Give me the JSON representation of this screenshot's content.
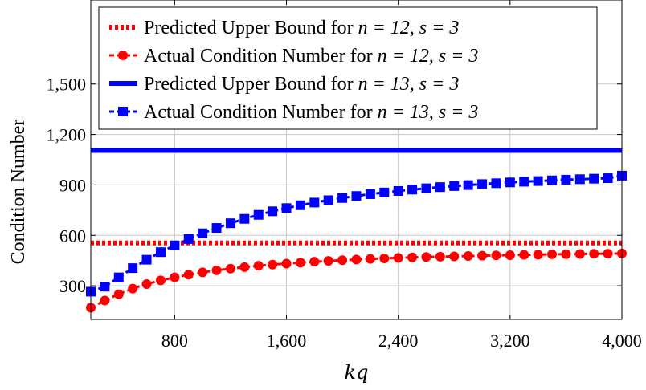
{
  "chart_data": {
    "type": "line",
    "xlabel": "kq",
    "ylabel": "Condition Number",
    "xlim": [
      200,
      4000
    ],
    "ylim": [
      100,
      2000
    ],
    "xticks": [
      800,
      1600,
      2400,
      3200,
      4000
    ],
    "xtick_labels": [
      "800",
      "1,600",
      "2,400",
      "3,200",
      "4,000"
    ],
    "yticks": [
      300,
      600,
      900,
      1200,
      1500
    ],
    "ytick_labels": [
      "300",
      "600",
      "900",
      "1,200",
      "1,500"
    ],
    "grid": true,
    "legend_position": "top",
    "x": [
      200,
      300,
      400,
      500,
      600,
      700,
      800,
      900,
      1000,
      1100,
      1200,
      1300,
      1400,
      1500,
      1600,
      1700,
      1800,
      1900,
      2000,
      2100,
      2200,
      2300,
      2400,
      2500,
      2600,
      2700,
      2800,
      2900,
      3000,
      3100,
      3200,
      3300,
      3400,
      3500,
      3600,
      3700,
      3800,
      3900,
      4000
    ],
    "series": [
      {
        "name": "Predicted Upper Bound for n = 12, s = 3",
        "label_text": "Predicted Upper Bound for ",
        "label_math": "n = 12, s = 3",
        "style": "dotted",
        "color": "#ff0000",
        "marker": "none",
        "values": [
          555,
          555,
          555,
          555,
          555,
          555,
          555,
          555,
          555,
          555,
          555,
          555,
          555,
          555,
          555,
          555,
          555,
          555,
          555,
          555,
          555,
          555,
          555,
          555,
          555,
          555,
          555,
          555,
          555,
          555,
          555,
          555,
          555,
          555,
          555,
          555,
          555,
          555,
          555
        ]
      },
      {
        "name": "Actual Condition Number for n = 12, s = 3",
        "label_text": "Actual Condition Number for ",
        "label_math": "n = 12, s = 3",
        "style": "dashed",
        "color": "#ff0000",
        "marker": "circle",
        "values": [
          170,
          212,
          250,
          283,
          310,
          332,
          350,
          366,
          380,
          392,
          402,
          411,
          419,
          426,
          432,
          438,
          443,
          448,
          452,
          456,
          460,
          463,
          466,
          469,
          471,
          473,
          475,
          477,
          479,
          481,
          482,
          484,
          485,
          487,
          488,
          489,
          490,
          491,
          492
        ]
      },
      {
        "name": "Predicted Upper Bound for n = 13, s = 3",
        "label_text": "Predicted Upper Bound for ",
        "label_math": "n = 13, s = 3",
        "style": "solid",
        "color": "#0000ff",
        "marker": "none",
        "values": [
          1105,
          1105,
          1105,
          1105,
          1105,
          1105,
          1105,
          1105,
          1105,
          1105,
          1105,
          1105,
          1105,
          1105,
          1105,
          1105,
          1105,
          1105,
          1105,
          1105,
          1105,
          1105,
          1105,
          1105,
          1105,
          1105,
          1105,
          1105,
          1105,
          1105,
          1105,
          1105,
          1105,
          1105,
          1105,
          1105,
          1105,
          1105,
          1105
        ]
      },
      {
        "name": "Actual Condition Number for n = 13, s = 3",
        "label_text": "Actual Condition Number for ",
        "label_math": "n = 13, s = 3",
        "style": "dashed",
        "color": "#0000ff",
        "marker": "square",
        "values": [
          265,
          295,
          350,
          405,
          455,
          500,
          540,
          578,
          612,
          644,
          672,
          698,
          722,
          743,
          762,
          779,
          795,
          809,
          822,
          834,
          845,
          855,
          864,
          872,
          880,
          887,
          893,
          899,
          905,
          910,
          915,
          919,
          923,
          927,
          931,
          934,
          937,
          940,
          955
        ]
      }
    ]
  }
}
